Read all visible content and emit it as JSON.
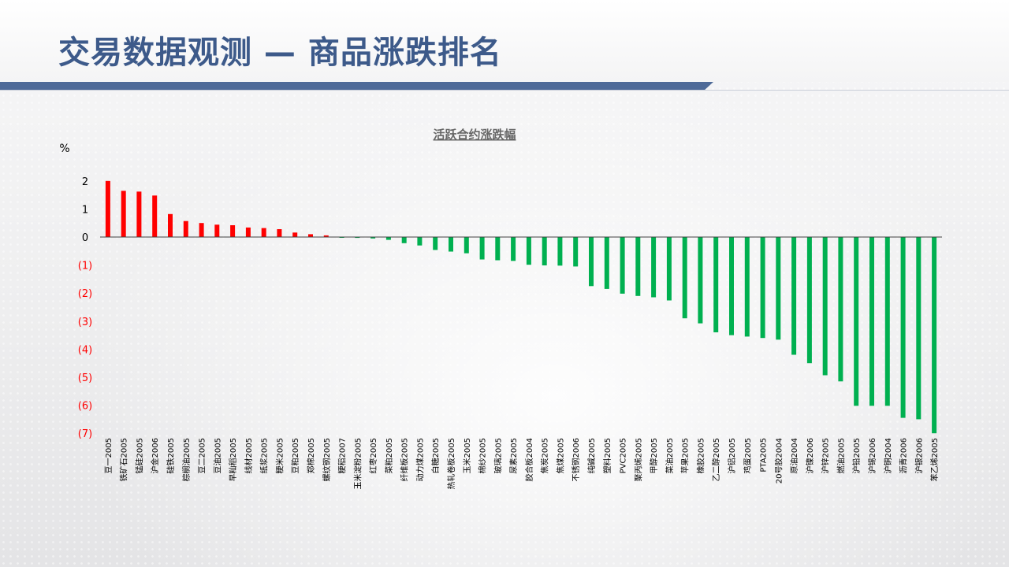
{
  "page": {
    "title": "交易数据观测 — 商品涨跌排名"
  },
  "colors": {
    "title": "#3d5a8a",
    "title_rule": "#4e6a98",
    "positive": "#ff0000",
    "negative": "#00b050",
    "axis_text": "#000000",
    "negative_tick_text": "#ff0000"
  },
  "chart_data": {
    "type": "bar",
    "title": "活跃合约涨跌幅",
    "ylabel": "%",
    "ylim": [
      -7,
      2
    ],
    "yticks": [
      2,
      1,
      0,
      -1,
      -2,
      -3,
      -4,
      -5,
      -6,
      -7
    ],
    "ytick_labels": [
      "2",
      "1",
      "0",
      "(1)",
      "(2)",
      "(3)",
      "(4)",
      "(5)",
      "(6)",
      "(7)"
    ],
    "grid": false,
    "legend": "none",
    "categories": [
      "豆一2005",
      "铁矿石2005",
      "锰硅2005",
      "沪金2006",
      "硅铁2005",
      "棕榈油2005",
      "豆二2005",
      "豆油2005",
      "早籼稻2005",
      "线材2005",
      "纸浆2005",
      "粳米2005",
      "豆粕2005",
      "郑棉2005",
      "螺纹钢2005",
      "粳稻2007",
      "玉米淀粉2005",
      "红枣2005",
      "菜粕2005",
      "纤维板2005",
      "动力煤2005",
      "白糖2005",
      "热轧卷板2005",
      "玉米2005",
      "棉纱2005",
      "玻璃2005",
      "尿素2005",
      "胶合板2004",
      "焦炭2005",
      "焦煤2005",
      "不锈钢2006",
      "纯碱2005",
      "塑料2005",
      "PVC2005",
      "聚丙烯2005",
      "甲醇2005",
      "菜油2005",
      "苹果2005",
      "橡胶2005",
      "乙二醇2005",
      "沪铝2005",
      "鸡蛋2005",
      "PTA2005",
      "20号胶2004",
      "原油2004",
      "沪镍2006",
      "沪锌2005",
      "燃油2005",
      "沪铅2005",
      "沪锡2006",
      "沪铜2004",
      "沥青2006",
      "沪银2006",
      "苯乙烯2005"
    ],
    "values": [
      2.0,
      1.65,
      1.62,
      1.48,
      0.82,
      0.57,
      0.5,
      0.44,
      0.42,
      0.34,
      0.32,
      0.28,
      0.16,
      0.1,
      0.06,
      -0.02,
      -0.03,
      -0.05,
      -0.1,
      -0.22,
      -0.3,
      -0.46,
      -0.52,
      -0.58,
      -0.8,
      -0.83,
      -0.85,
      -0.99,
      -1.01,
      -1.02,
      -1.05,
      -1.75,
      -1.85,
      -2.02,
      -2.1,
      -2.15,
      -2.26,
      -2.9,
      -3.08,
      -3.4,
      -3.5,
      -3.55,
      -3.6,
      -3.66,
      -4.2,
      -4.5,
      -4.93,
      -5.15,
      -6.02,
      -6.02,
      -6.02,
      -6.45,
      -6.5,
      -7.0
    ]
  }
}
